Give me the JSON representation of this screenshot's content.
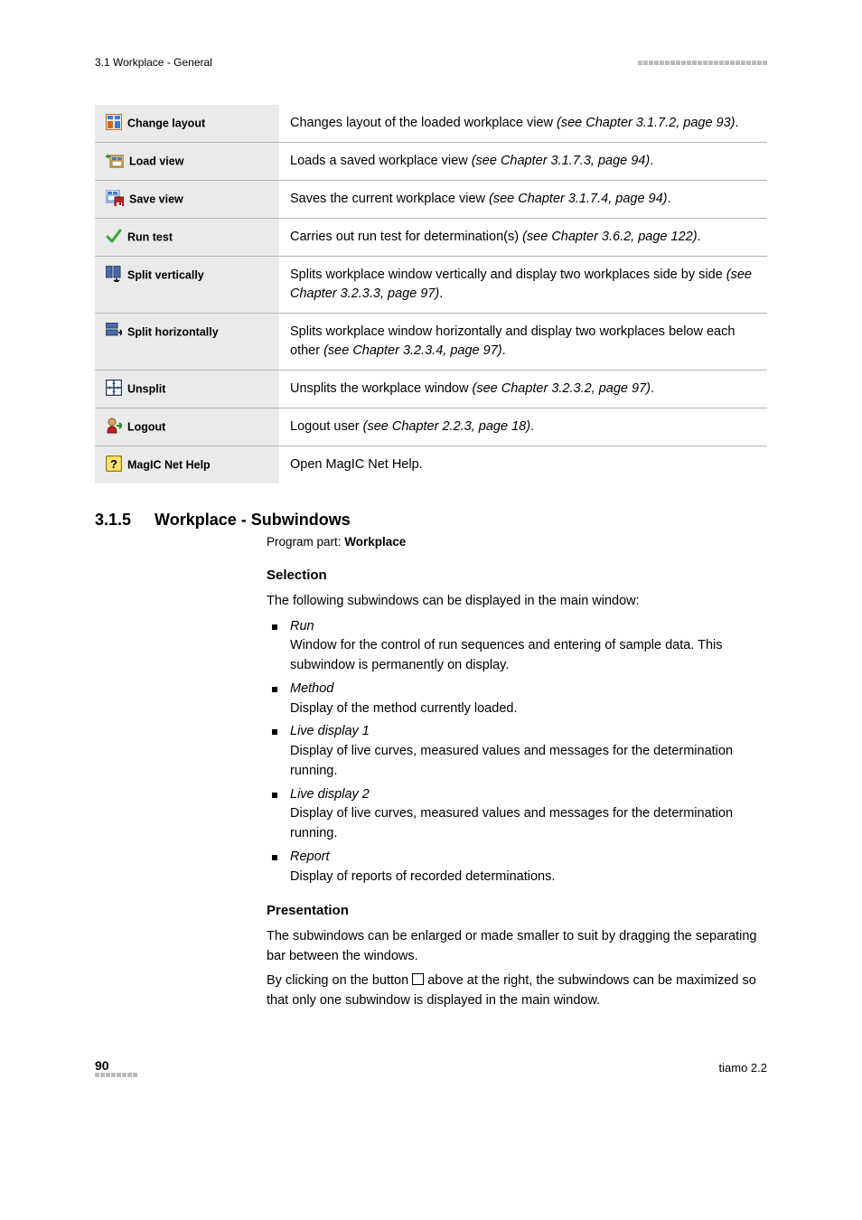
{
  "header": {
    "left": "3.1 Workplace - General",
    "dot_count_top": 24
  },
  "toolbar_rows": [
    {
      "icon": "change-layout-icon",
      "label": "Change layout",
      "desc_pre": "Changes layout of the loaded workplace view ",
      "desc_ital": "(see Chapter 3.1.7.2, page 93)",
      "desc_post": "."
    },
    {
      "icon": "load-view-icon",
      "label": "Load view",
      "desc_pre": "Loads a saved workplace view ",
      "desc_ital": "(see Chapter 3.1.7.3, page 94)",
      "desc_post": "."
    },
    {
      "icon": "save-view-icon",
      "label": "Save view",
      "desc_pre": "Saves the current workplace view ",
      "desc_ital": "(see Chapter 3.1.7.4, page 94)",
      "desc_post": "."
    },
    {
      "icon": "run-test-icon",
      "label": "Run test",
      "desc_pre": "Carries out run test for determination(s) ",
      "desc_ital": "(see Chapter 3.6.2, page 122)",
      "desc_post": "."
    },
    {
      "icon": "split-vertically-icon",
      "label": "Split vertically",
      "desc_pre": "Splits workplace window vertically and display two workplaces side by side ",
      "desc_ital": "(see Chapter 3.2.3.3, page 97)",
      "desc_post": "."
    },
    {
      "icon": "split-horizontally-icon",
      "label": "Split horizontally",
      "desc_pre": "Splits workplace window horizontally and display two workplaces below each other ",
      "desc_ital": "(see Chapter 3.2.3.4, page 97)",
      "desc_post": "."
    },
    {
      "icon": "unsplit-icon",
      "label": "Unsplit",
      "desc_pre": "Unsplits the workplace window ",
      "desc_ital": "(see Chapter 3.2.3.2, page 97)",
      "desc_post": "."
    },
    {
      "icon": "logout-icon",
      "label": "Logout",
      "desc_pre": "Logout user ",
      "desc_ital": "(see Chapter 2.2.3, page 18)",
      "desc_post": "."
    },
    {
      "icon": "help-icon",
      "label": "MagIC Net Help",
      "desc_pre": "Open MagIC Net Help.",
      "desc_ital": "",
      "desc_post": ""
    }
  ],
  "section": {
    "num": "3.1.5",
    "title": "Workplace - Subwindows",
    "programPart_label": "Program part: ",
    "programPart_value": "Workplace",
    "selection_h": "Selection",
    "selection_intro": "The following subwindows can be displayed in the main window:",
    "bullets": [
      {
        "title": "Run",
        "body": "Window for the control of run sequences and entering of sample data. This subwindow is permanently on display."
      },
      {
        "title": "Method",
        "body": "Display of the method currently loaded."
      },
      {
        "title": "Live display 1",
        "body": "Display of live curves, measured values and messages for the determination running."
      },
      {
        "title": "Live display 2",
        "body": "Display of live curves, measured values and messages for the determination running."
      },
      {
        "title": "Report",
        "body": "Display of reports of recorded determinations."
      }
    ],
    "presentation_h": "Presentation",
    "presentation_p1": "The subwindows can be enlarged or made smaller to suit by dragging the separating bar between the windows.",
    "presentation_p2_pre": "By clicking on the button ",
    "presentation_p2_post": " above at the right, the subwindows can be maximized so that only one subwindow is displayed in the main window."
  },
  "footer": {
    "page_num": "90",
    "dot_count_bottom": 8,
    "right": "tiamo 2.2"
  },
  "icons_svg": {
    "change-layout-icon": "<svg width='18' height='18' viewBox='0 0 18 18'><rect x='0.5' y='0.5' width='17' height='17' fill='none' stroke='#d06a1a' stroke-width='1'/><rect x='2' y='2' width='6' height='4' fill='#3b7bd1'/><rect x='10' y='2' width='6' height='4' fill='#3b7bd1'/><rect x='2' y='8' width='6' height='8' fill='#d06a1a'/><rect x='10' y='8' width='6' height='8' fill='#3b7bd1'/></svg>",
    "load-view-icon": "<svg width='20' height='18' viewBox='0 0 20 18'><rect x='5' y='4' width='15' height='14' fill='#e0c46a' stroke='#8a6a20'/><rect x='7' y='6' width='5' height='3' fill='#3b7bd1'/><rect x='13' y='6' width='5' height='3' fill='#3b7bd1'/><rect x='7' y='10' width='11' height='6' fill='#fff' stroke='#8a6a20'/><path d='M2 2 L5 5 L2 8 Z' fill='#2a8a2a'/><line x1='0' y1='5' x2='5' y2='5' stroke='#2a8a2a' stroke-width='2'/></svg>",
    "save-view-icon": "<svg width='20' height='18' viewBox='0 0 20 18'><rect x='0' y='0' width='15' height='14' fill='none' stroke='#3b7bd1' stroke-width='1'/><rect x='2' y='2' width='5' height='3' fill='#3b7bd1'/><rect x='8' y='2' width='5' height='3' fill='#3b7bd1'/><rect x='2' y='6' width='11' height='6' fill='#fff' stroke='#3b7bd1'/><rect x='10' y='8' width='10' height='10' fill='#c02020' stroke='#701010'/><rect x='12' y='14' width='6' height='4' fill='#fff'/><rect x='15' y='14' width='2' height='3' fill='#701010'/></svg>",
    "run-test-icon": "<svg width='18' height='18' viewBox='0 0 18 18'><path d='M2 10 L7 15 L16 3' fill='none' stroke='#3aa53a' stroke-width='3' stroke-linecap='round' stroke-linejoin='round'/></svg>",
    "split-vertically-icon": "<svg width='18' height='18' viewBox='0 0 18 18'><rect x='0' y='0' width='7' height='13' fill='#4a6aa8' stroke='#233c66'/><rect x='9' y='0' width='7' height='13' fill='#4a6aa8' stroke='#233c66'/><path d='M12 14 L12 18 M9 16 L12 18 L15 16' fill='none' stroke='#000' stroke-width='1.5'/></svg>",
    "split-horizontally-icon": "<svg width='18' height='18' viewBox='0 0 18 18'><rect x='0' y='0' width='13' height='6' fill='#4a6aa8' stroke='#233c66'/><rect x='0' y='8' width='13' height='6' fill='#4a6aa8' stroke='#233c66'/><path d='M14 11 L18 11 M16 8 L18 11 L16 14' fill='none' stroke='#000' stroke-width='1.5'/></svg>",
    "unsplit-icon": "<svg width='18' height='18' viewBox='0 0 18 18'><rect x='0.5' y='0.5' width='17' height='17' fill='#fff' stroke='#233c66' stroke-width='1.5'/><line x1='9' y1='0' x2='9' y2='18' stroke='#233c66' stroke-width='1.5'/><line x1='0' y1='9' x2='18' y2='9' stroke='#233c66' stroke-width='1.5'/><path d='M9 3 L7 5 L11 5 Z' fill='#233c66'/><path d='M9 15 L7 13 L11 13 Z' fill='#233c66'/><path d='M3 9 L5 7 L5 11 Z' fill='#233c66'/><path d='M15 9 L13 7 L13 11 Z' fill='#233c66'/></svg>",
    "logout-icon": "<svg width='18' height='18' viewBox='0 0 18 18'><circle cx='7' cy='5' r='4' fill='#e0a060' stroke='#8a5a20'/><path d='M2 17 Q2 10 7 10 Q12 10 12 17 Z' fill='#c02020' stroke='#701010'/><path d='M12 9 L17 9 M15 6 L18 9 L15 12' fill='none' stroke='#2a8a2a' stroke-width='2'/></svg>",
    "help-icon": "<svg width='18' height='18' viewBox='0 0 18 18'><rect x='0.5' y='0.5' width='17' height='17' rx='2' fill='#ffe270' stroke='#9a7a10' stroke-width='1.5'/><text x='9' y='14' text-anchor='middle' font-family='Arial' font-size='13' font-weight='bold' fill='#000'>?</text></svg>"
  }
}
